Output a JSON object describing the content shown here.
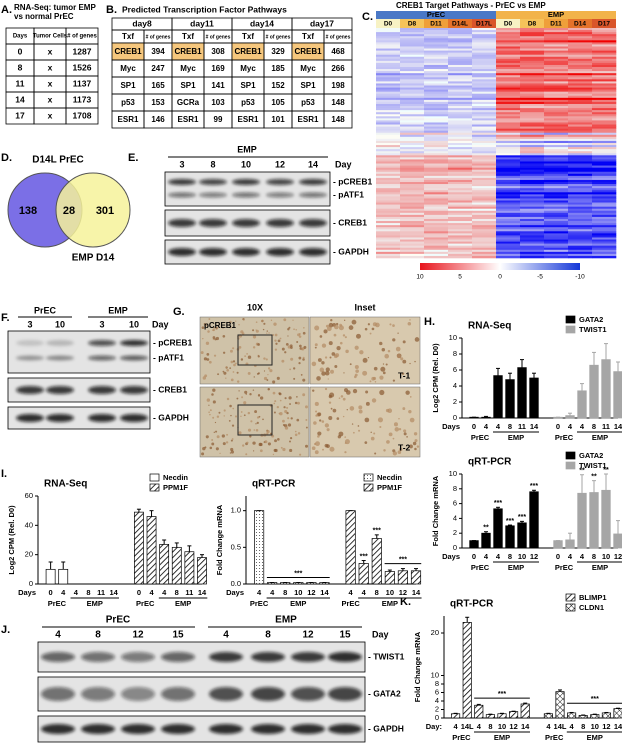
{
  "panel_a": {
    "letter": "A.",
    "title_lines": [
      "RNA-Seq: tumor EMP",
      "vs normal PrEC"
    ],
    "headers": [
      "Days",
      "Tumor Cells",
      "# of genes"
    ],
    "rows": [
      [
        0,
        "x",
        1287
      ],
      [
        8,
        "x",
        1526
      ],
      [
        11,
        "x",
        1137
      ],
      [
        14,
        "x",
        1173
      ],
      [
        17,
        "x",
        1708
      ]
    ]
  },
  "panel_b": {
    "letter": "B.",
    "title": "Predicted Transcription Factor Pathways",
    "days": [
      "day8",
      "day11",
      "day14",
      "day17"
    ],
    "subheaders": [
      "Txf",
      "# of genes"
    ],
    "rows": [
      [
        "CREB1",
        394,
        "CREB1",
        308,
        "CREB1",
        329,
        "CREB1",
        468
      ],
      [
        "Myc",
        247,
        "Myc",
        169,
        "Myc",
        185,
        "Myc",
        266
      ],
      [
        "SP1",
        165,
        "SP1",
        141,
        "SP1",
        152,
        "SP1",
        198
      ],
      [
        "p53",
        153,
        "GCRa",
        103,
        "p53",
        105,
        "p53",
        148
      ],
      [
        "ESR1",
        146,
        "ESR1",
        99,
        "ESR1",
        101,
        "ESR1",
        148
      ]
    ]
  },
  "panel_c": {
    "letter": "C.",
    "title": "CREB1 Target Pathways - PrEC vs EMP",
    "groups": [
      "PrEC",
      "EMP"
    ],
    "columns": [
      [
        "D0",
        "D8",
        "D11",
        "D14L",
        "D17L"
      ],
      [
        "D0",
        "D8",
        "D11",
        "D14",
        "D17"
      ]
    ],
    "colorbar_ticks": [
      10,
      5,
      0,
      -5,
      -10
    ]
  },
  "panel_d": {
    "letter": "D.",
    "sets": [
      "D14L PrEC",
      "EMP D14"
    ],
    "counts": [
      138,
      28,
      301
    ]
  },
  "panel_e": {
    "letter": "E.",
    "group": "EMP",
    "lanes": [
      3,
      8,
      10,
      12,
      14
    ],
    "day_label": "Day",
    "bands": [
      "- pCREB1",
      "- pATF1",
      "- CREB1",
      "- GAPDH"
    ]
  },
  "panel_f": {
    "letter": "F.",
    "groups": [
      "PrEC",
      "EMP"
    ],
    "lanes": [
      3,
      10,
      3,
      10
    ],
    "day_label": "Day",
    "bands": [
      "- pCREB1",
      "- pATF1",
      "- CREB1",
      "- GAPDH"
    ]
  },
  "panel_g": {
    "letter": "G.",
    "columns": [
      "10X",
      "Inset"
    ],
    "stain": "pCREB1",
    "rows": [
      "T-1",
      "T-2"
    ]
  },
  "panel_h": {
    "letter": "H.",
    "charts": [
      {
        "type": "bar",
        "title": "RNA-Seq",
        "ylabel": "Log2 CPM (Rel. D0)",
        "ylim": [
          0,
          10
        ],
        "yticks": [
          0,
          2,
          4,
          6,
          8,
          10
        ],
        "x_label": "Days",
        "categories": [
          "0",
          "4",
          "4",
          "8",
          "11",
          "14"
        ],
        "group_labels": [
          "PrEC",
          "EMP"
        ],
        "series": [
          {
            "name": "GATA2",
            "color": "#000000",
            "pattern": "solid",
            "values": [
              0.1,
              0.1,
              5.3,
              4.8,
              6.3,
              5.0
            ],
            "errors": [
              0,
              0.1,
              0.9,
              0.8,
              1.0,
              0.6
            ]
          },
          {
            "name": "TWIST1",
            "color": "#a6a6a6",
            "pattern": "solid",
            "values": [
              0.1,
              0.3,
              3.4,
              6.6,
              7.3,
              5.8
            ],
            "errors": [
              0,
              0.3,
              0.9,
              1.6,
              2.0,
              1.2
            ]
          }
        ]
      },
      {
        "type": "bar",
        "title": "qRT-PCR",
        "ylabel": "Fold Change mRNA",
        "ylim": [
          0,
          10
        ],
        "yticks": [
          0,
          2,
          4,
          6,
          8,
          10
        ],
        "x_label": "Days",
        "categories": [
          "0",
          "4",
          "4",
          "8",
          "10",
          "12"
        ],
        "group_labels": [
          "PrEC",
          "EMP"
        ],
        "series": [
          {
            "name": "GATA2",
            "color": "#000000",
            "pattern": "solid",
            "values": [
              1.0,
              2.0,
              5.3,
              3.0,
              3.4,
              7.6
            ],
            "errors": [
              0,
              0.2,
              0.2,
              0.1,
              0.2,
              0.2
            ],
            "stars": [
              null,
              "**",
              "***",
              "***",
              "***",
              "***"
            ]
          },
          {
            "name": "TWIST1",
            "color": "#a6a6a6",
            "pattern": "solid",
            "values": [
              1.0,
              1.1,
              7.4,
              7.5,
              7.8,
              1.9
            ],
            "errors": [
              0,
              0.9,
              2.5,
              1.6,
              2.2,
              1.8
            ],
            "stars": [
              null,
              null,
              "**",
              "**",
              "**",
              null
            ]
          }
        ]
      }
    ]
  },
  "panel_i": {
    "letter": "I.",
    "charts": [
      {
        "type": "bar",
        "title": "RNA-Seq",
        "ylabel": "Log2 CPM (Rel. D0)",
        "ylim": [
          0,
          60
        ],
        "yticks": [
          0,
          20,
          40,
          60
        ],
        "x_label": "Days",
        "categories": [
          "0",
          "4",
          "4",
          "8",
          "11",
          "14"
        ],
        "group_labels": [
          "PrEC",
          "EMP"
        ],
        "series": [
          {
            "name": "Necdin",
            "color": "#000000",
            "pattern": "none",
            "values": [
              10,
              10,
              0,
              0,
              0,
              0
            ],
            "errors": [
              5,
              5,
              0,
              0,
              0,
              0
            ]
          },
          {
            "name": "PPM1F",
            "color": "#000000",
            "pattern": "hatch",
            "values": [
              49,
              46,
              27,
              25,
              22,
              18
            ],
            "errors": [
              2,
              4,
              3,
              3,
              4,
              2
            ]
          }
        ]
      },
      {
        "type": "bar",
        "title": "qRT-PCR",
        "ylabel": "Fold Change mRNA",
        "ylim": [
          0,
          1.2
        ],
        "yticks": [
          {
            "value": 0,
            "label": "0.0"
          },
          {
            "value": 0.5,
            "label": "0.5"
          },
          {
            "value": 1,
            "label": "1.0"
          }
        ],
        "x_label": "Days",
        "categories": [
          "4",
          "4",
          "8",
          "10",
          "12",
          "14"
        ],
        "group_labels": [
          "PrEC",
          "EMP"
        ],
        "series": [
          {
            "name": "Necdin",
            "color": "#000000",
            "pattern": "dots",
            "values": [
              1.0,
              0.02,
              0.02,
              0.02,
              0.02,
              0.02
            ],
            "errors": [
              0,
              0,
              0,
              0,
              0,
              0
            ],
            "bracket": "***"
          },
          {
            "name": "PPM1F",
            "color": "#000000",
            "pattern": "hatch",
            "values": [
              1.0,
              0.28,
              0.62,
              0.17,
              0.18,
              0.18
            ],
            "errors": [
              0,
              0.04,
              0.05,
              0.02,
              0.03,
              0.03
            ],
            "stars": [
              null,
              "***",
              "***",
              null,
              null,
              null
            ],
            "bracket": "***"
          }
        ]
      }
    ]
  },
  "panel_j": {
    "letter": "J.",
    "groups": [
      "PrEC",
      "EMP"
    ],
    "lanes": [
      4,
      8,
      12,
      15,
      4,
      8,
      12,
      15
    ],
    "day_label": "Day",
    "bands": [
      "- TWIST1",
      "- GATA2",
      "- GAPDH"
    ]
  },
  "panel_k": {
    "letter": "K.",
    "charts": [
      {
        "type": "bar",
        "title": "qRT-PCR",
        "ylabel": "Fold Change mRNA",
        "ylim": [
          0,
          24
        ],
        "yticks": [
          0,
          2,
          4,
          6,
          8,
          10,
          20
        ],
        "x_label": "Day:",
        "categories": [
          "4",
          "14L",
          "4",
          "8",
          "10",
          "12",
          "14"
        ],
        "group_labels": [
          "PrEC",
          "EMP"
        ],
        "series": [
          {
            "name": "BLIMP1",
            "color": "#000000",
            "pattern": "hatch",
            "values": [
              1,
              22.5,
              3,
              0.8,
              1,
              1.5,
              3.3
            ],
            "errors": [
              0.1,
              1.2,
              0.2,
              0.1,
              0.1,
              0.1,
              0.2
            ],
            "bracket": "***"
          },
          {
            "name": "CLDN1",
            "color": "#000000",
            "pattern": "cross",
            "values": [
              1,
              6.2,
              1.2,
              0.6,
              0.8,
              1.2,
              2.2
            ],
            "errors": [
              0.1,
              0.4,
              0.1,
              0.1,
              0.1,
              0.1,
              0.1
            ],
            "bracket": "***"
          }
        ]
      }
    ]
  }
}
